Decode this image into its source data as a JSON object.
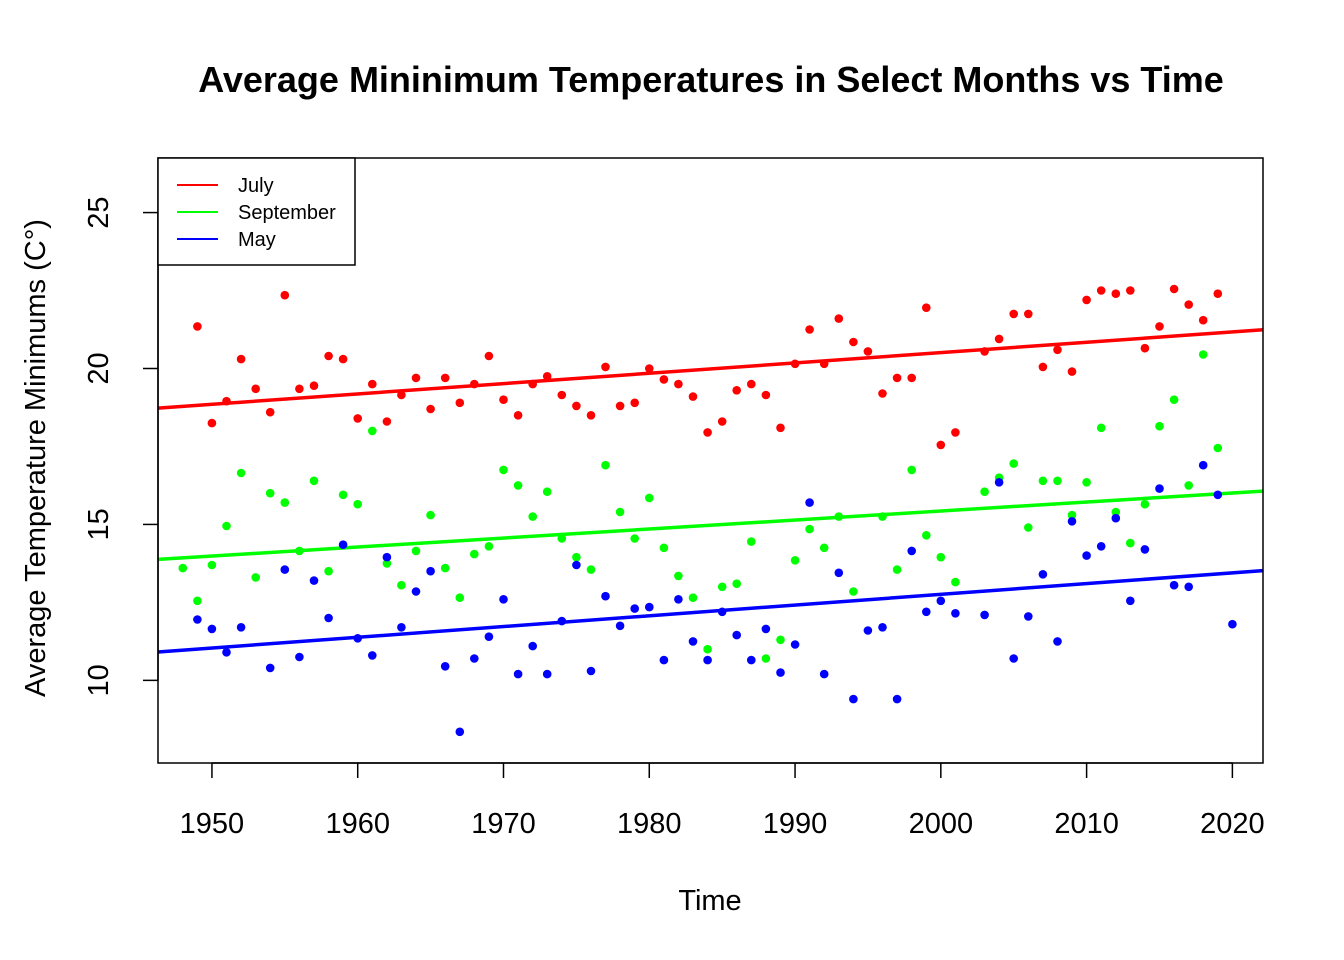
{
  "chart_data": {
    "type": "scatter",
    "title": "Average Mininimum Temperatures in Select Months vs Time",
    "xlabel": "Time",
    "ylabel": "Average Temperature Minimums (C°)",
    "xlim": [
      1946.3,
      2022.1
    ],
    "ylim": [
      7.35,
      26.75
    ],
    "x_ticks": [
      1950,
      1960,
      1970,
      1980,
      1990,
      2000,
      2010,
      2020
    ],
    "y_ticks": [
      10,
      15,
      20,
      25
    ],
    "grid": false,
    "legend_position": "top-left",
    "series": [
      {
        "name": "July",
        "color": "#ff0000",
        "trend": {
          "start": [
            1946.3,
            18.73
          ],
          "end": [
            2022.1,
            21.24
          ]
        },
        "points": [
          [
            1949,
            21.35
          ],
          [
            1950,
            18.25
          ],
          [
            1951,
            18.95
          ],
          [
            1952,
            20.3
          ],
          [
            1953,
            19.35
          ],
          [
            1954,
            18.6
          ],
          [
            1955,
            22.35
          ],
          [
            1956,
            19.35
          ],
          [
            1957,
            19.45
          ],
          [
            1958,
            20.4
          ],
          [
            1959,
            20.3
          ],
          [
            1960,
            18.4
          ],
          [
            1961,
            19.5
          ],
          [
            1962,
            18.3
          ],
          [
            1963,
            19.15
          ],
          [
            1964,
            19.7
          ],
          [
            1965,
            18.7
          ],
          [
            1966,
            19.7
          ],
          [
            1967,
            18.9
          ],
          [
            1968,
            19.5
          ],
          [
            1969,
            20.4
          ],
          [
            1970,
            19.0
          ],
          [
            1971,
            18.5
          ],
          [
            1972,
            19.5
          ],
          [
            1973,
            19.75
          ],
          [
            1974,
            19.15
          ],
          [
            1975,
            18.8
          ],
          [
            1976,
            18.5
          ],
          [
            1977,
            20.05
          ],
          [
            1978,
            18.8
          ],
          [
            1979,
            18.9
          ],
          [
            1980,
            20.0
          ],
          [
            1981,
            19.65
          ],
          [
            1982,
            19.5
          ],
          [
            1983,
            19.1
          ],
          [
            1984,
            17.95
          ],
          [
            1985,
            18.3
          ],
          [
            1986,
            19.3
          ],
          [
            1987,
            19.5
          ],
          [
            1988,
            19.15
          ],
          [
            1989,
            18.1
          ],
          [
            1990,
            20.15
          ],
          [
            1991,
            21.25
          ],
          [
            1992,
            20.15
          ],
          [
            1993,
            21.6
          ],
          [
            1994,
            20.85
          ],
          [
            1995,
            20.55
          ],
          [
            1996,
            19.2
          ],
          [
            1997,
            19.7
          ],
          [
            1998,
            19.7
          ],
          [
            1999,
            21.95
          ],
          [
            2000,
            17.55
          ],
          [
            2001,
            17.95
          ],
          [
            2003,
            20.55
          ],
          [
            2004,
            20.95
          ],
          [
            2005,
            21.75
          ],
          [
            2006,
            21.75
          ],
          [
            2007,
            20.05
          ],
          [
            2008,
            20.6
          ],
          [
            2009,
            19.9
          ],
          [
            2010,
            22.2
          ],
          [
            2011,
            22.5
          ],
          [
            2012,
            22.4
          ],
          [
            2013,
            22.5
          ],
          [
            2014,
            20.65
          ],
          [
            2015,
            21.35
          ],
          [
            2016,
            22.55
          ],
          [
            2017,
            22.05
          ],
          [
            2018,
            21.55
          ],
          [
            2019,
            22.4
          ]
        ]
      },
      {
        "name": "September",
        "color": "#00ff00",
        "trend": {
          "start": [
            1946.3,
            13.88
          ],
          "end": [
            2022.1,
            16.07
          ]
        },
        "points": [
          [
            1948,
            13.6
          ],
          [
            1949,
            12.55
          ],
          [
            1950,
            13.7
          ],
          [
            1951,
            14.95
          ],
          [
            1952,
            16.65
          ],
          [
            1953,
            13.3
          ],
          [
            1954,
            16.0
          ],
          [
            1955,
            15.7
          ],
          [
            1956,
            14.15
          ],
          [
            1957,
            16.4
          ],
          [
            1958,
            13.5
          ],
          [
            1959,
            15.95
          ],
          [
            1960,
            15.65
          ],
          [
            1961,
            18.0
          ],
          [
            1962,
            13.75
          ],
          [
            1963,
            13.05
          ],
          [
            1964,
            14.15
          ],
          [
            1965,
            15.3
          ],
          [
            1966,
            13.6
          ],
          [
            1967,
            12.65
          ],
          [
            1968,
            14.05
          ],
          [
            1969,
            14.3
          ],
          [
            1970,
            16.75
          ],
          [
            1971,
            16.25
          ],
          [
            1972,
            15.25
          ],
          [
            1973,
            16.05
          ],
          [
            1974,
            14.55
          ],
          [
            1975,
            13.95
          ],
          [
            1976,
            13.55
          ],
          [
            1977,
            16.9
          ],
          [
            1978,
            15.4
          ],
          [
            1979,
            14.55
          ],
          [
            1980,
            15.85
          ],
          [
            1981,
            14.25
          ],
          [
            1982,
            13.35
          ],
          [
            1983,
            12.65
          ],
          [
            1984,
            11.0
          ],
          [
            1985,
            13.0
          ],
          [
            1986,
            13.1
          ],
          [
            1987,
            14.45
          ],
          [
            1988,
            10.7
          ],
          [
            1989,
            11.3
          ],
          [
            1990,
            13.85
          ],
          [
            1991,
            14.85
          ],
          [
            1992,
            14.25
          ],
          [
            1993,
            15.25
          ],
          [
            1994,
            12.85
          ],
          [
            1996,
            15.25
          ],
          [
            1997,
            13.55
          ],
          [
            1998,
            16.75
          ],
          [
            1999,
            14.65
          ],
          [
            2000,
            13.95
          ],
          [
            2001,
            13.15
          ],
          [
            2003,
            16.05
          ],
          [
            2004,
            16.5
          ],
          [
            2005,
            16.95
          ],
          [
            2006,
            14.9
          ],
          [
            2007,
            16.4
          ],
          [
            2008,
            16.4
          ],
          [
            2009,
            15.3
          ],
          [
            2010,
            16.35
          ],
          [
            2011,
            18.1
          ],
          [
            2012,
            15.4
          ],
          [
            2013,
            14.4
          ],
          [
            2014,
            15.65
          ],
          [
            2015,
            18.15
          ],
          [
            2016,
            19.0
          ],
          [
            2017,
            16.25
          ],
          [
            2018,
            20.45
          ],
          [
            2019,
            17.45
          ]
        ]
      },
      {
        "name": "May",
        "color": "#0000ff",
        "trend": {
          "start": [
            1946.3,
            10.91
          ],
          "end": [
            2022.1,
            13.52
          ]
        },
        "points": [
          [
            1949,
            11.95
          ],
          [
            1950,
            11.65
          ],
          [
            1951,
            10.9
          ],
          [
            1952,
            11.7
          ],
          [
            1954,
            10.4
          ],
          [
            1955,
            13.55
          ],
          [
            1956,
            10.75
          ],
          [
            1957,
            13.2
          ],
          [
            1958,
            12.0
          ],
          [
            1959,
            14.35
          ],
          [
            1960,
            11.35
          ],
          [
            1961,
            10.8
          ],
          [
            1962,
            13.95
          ],
          [
            1963,
            11.7
          ],
          [
            1964,
            12.85
          ],
          [
            1965,
            13.5
          ],
          [
            1966,
            10.45
          ],
          [
            1967,
            8.35
          ],
          [
            1968,
            10.7
          ],
          [
            1969,
            11.4
          ],
          [
            1970,
            12.6
          ],
          [
            1971,
            10.2
          ],
          [
            1972,
            11.1
          ],
          [
            1973,
            10.2
          ],
          [
            1974,
            11.9
          ],
          [
            1975,
            13.7
          ],
          [
            1976,
            10.3
          ],
          [
            1977,
            12.7
          ],
          [
            1978,
            11.75
          ],
          [
            1979,
            12.3
          ],
          [
            1980,
            12.35
          ],
          [
            1981,
            10.65
          ],
          [
            1982,
            12.6
          ],
          [
            1983,
            11.25
          ],
          [
            1984,
            10.65
          ],
          [
            1985,
            12.2
          ],
          [
            1986,
            11.45
          ],
          [
            1987,
            10.65
          ],
          [
            1988,
            11.65
          ],
          [
            1989,
            10.25
          ],
          [
            1990,
            11.15
          ],
          [
            1991,
            15.7
          ],
          [
            1992,
            10.2
          ],
          [
            1993,
            13.45
          ],
          [
            1994,
            9.4
          ],
          [
            1995,
            11.6
          ],
          [
            1996,
            11.7
          ],
          [
            1997,
            9.4
          ],
          [
            1998,
            14.15
          ],
          [
            1999,
            12.2
          ],
          [
            2000,
            12.55
          ],
          [
            2001,
            12.15
          ],
          [
            2003,
            12.1
          ],
          [
            2004,
            16.35
          ],
          [
            2005,
            10.7
          ],
          [
            2006,
            12.05
          ],
          [
            2007,
            13.4
          ],
          [
            2008,
            11.25
          ],
          [
            2009,
            15.1
          ],
          [
            2010,
            14.0
          ],
          [
            2011,
            14.3
          ],
          [
            2012,
            15.2
          ],
          [
            2013,
            12.55
          ],
          [
            2014,
            14.2
          ],
          [
            2015,
            16.15
          ],
          [
            2016,
            13.05
          ],
          [
            2017,
            13.0
          ],
          [
            2018,
            16.9
          ],
          [
            2019,
            15.95
          ],
          [
            2020,
            11.8
          ]
        ]
      }
    ]
  }
}
